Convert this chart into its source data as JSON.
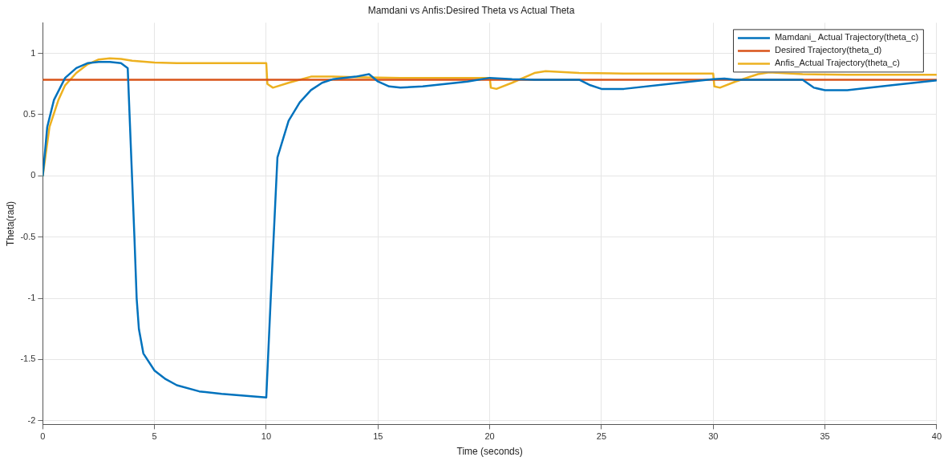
{
  "chart_data": {
    "type": "line",
    "title": "Mamdani vs Anfis:Desired Theta vs Actual Theta",
    "xlabel": "Time (seconds)",
    "ylabel": "Theta(rad)",
    "xlim": [
      0,
      40
    ],
    "xticks": [
      0,
      5,
      10,
      15,
      20,
      25,
      30,
      35,
      40
    ],
    "ylim": [
      -2.03,
      1.25
    ],
    "yticks": [
      -2,
      -1.5,
      -1,
      -0.5,
      0,
      0.5,
      1
    ],
    "grid": true,
    "legend": "top right",
    "marker": "none",
    "line_style": "solid",
    "series": [
      {
        "name": "Mamdani_ Actual Trajectory(theta_c)",
        "color": "#0072bd",
        "x": [
          0,
          0.2,
          0.5,
          1,
          1.5,
          2,
          2.5,
          3,
          3.5,
          3.8,
          4.1,
          4.2,
          4.3,
          4.5,
          5,
          5.5,
          6,
          7,
          8,
          9,
          10,
          10.2,
          10.5,
          11,
          11.5,
          12,
          12.5,
          13,
          14,
          14.6,
          15,
          15.5,
          16,
          17,
          18,
          19,
          20,
          21,
          22,
          24,
          24.5,
          25,
          26,
          28,
          30,
          30.5,
          31,
          34,
          34.5,
          35,
          36,
          38,
          40
        ],
        "values": [
          0,
          0.4,
          0.62,
          0.8,
          0.88,
          0.92,
          0.93,
          0.93,
          0.92,
          0.88,
          -0.5,
          -1,
          -1.25,
          -1.45,
          -1.59,
          -1.66,
          -1.71,
          -1.76,
          -1.78,
          -1.795,
          -1.81,
          -1,
          0.15,
          0.45,
          0.6,
          0.7,
          0.76,
          0.79,
          0.81,
          0.83,
          0.77,
          0.73,
          0.72,
          0.73,
          0.75,
          0.77,
          0.8,
          0.79,
          0.785,
          0.785,
          0.74,
          0.71,
          0.71,
          0.75,
          0.79,
          0.795,
          0.785,
          0.785,
          0.72,
          0.7,
          0.7,
          0.74,
          0.78
        ]
      },
      {
        "name": "Desired Trajectory(theta_d)",
        "color": "#d95319",
        "x": [
          0,
          40
        ],
        "values": [
          0.785,
          0.785
        ]
      },
      {
        "name": "Anfis_Actual Trajectory(theta_c)",
        "color": "#edb120",
        "x": [
          0,
          0.3,
          0.7,
          1,
          1.5,
          2,
          2.5,
          3,
          3.5,
          4,
          5,
          6,
          10,
          10.05,
          10.3,
          11,
          12,
          13,
          14,
          16,
          20,
          20.05,
          20.3,
          21,
          22,
          22.5,
          24,
          26,
          30,
          30.05,
          30.3,
          31,
          32,
          32.5,
          34,
          36,
          40
        ],
        "values": [
          0,
          0.4,
          0.62,
          0.74,
          0.84,
          0.91,
          0.95,
          0.96,
          0.955,
          0.94,
          0.925,
          0.92,
          0.92,
          0.75,
          0.72,
          0.76,
          0.81,
          0.81,
          0.805,
          0.8,
          0.8,
          0.72,
          0.71,
          0.76,
          0.84,
          0.855,
          0.84,
          0.835,
          0.835,
          0.73,
          0.72,
          0.77,
          0.83,
          0.845,
          0.83,
          0.825,
          0.825
        ]
      }
    ]
  }
}
